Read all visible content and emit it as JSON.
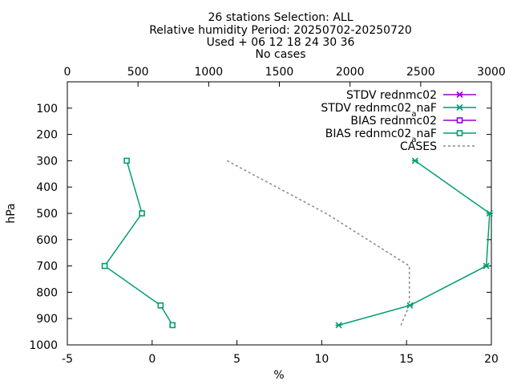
{
  "title": {
    "line1": "26 stations Selection: ALL",
    "line2": "Relative humidity  Period: 20250702-20250720",
    "line3": "Used  + 06 12 18 24 30 36",
    "line4": "No cases"
  },
  "chart_data": {
    "type": "line",
    "xlabel": "%",
    "ylabel": "hPa",
    "xlim": [
      -5,
      20
    ],
    "ylim": [
      1000,
      0
    ],
    "x_ticks": [
      -5,
      0,
      5,
      10,
      15,
      20
    ],
    "y_ticks": [
      100,
      200,
      300,
      400,
      500,
      600,
      700,
      800,
      900,
      1000
    ],
    "x2lim": [
      0,
      3000
    ],
    "x2_ticks": [
      0,
      500,
      1000,
      1500,
      2000,
      2500,
      3000
    ],
    "grid": false,
    "legend_position": "top-right",
    "series": [
      {
        "name": "STDV rednmc02",
        "color": "#9400d3",
        "marker": "star",
        "dash": "solid",
        "points": []
      },
      {
        "name": "STDV rednmc02_anaF",
        "color": "#009e73",
        "marker": "star",
        "dash": "solid",
        "points": [
          [
            15.5,
            300
          ],
          [
            19.9,
            500
          ],
          [
            19.7,
            700
          ],
          [
            15.2,
            850
          ],
          [
            11.0,
            925
          ]
        ]
      },
      {
        "name": "BIAS rednmc02",
        "color": "#9400d3",
        "marker": "square",
        "dash": "solid",
        "points": []
      },
      {
        "name": "BIAS rednmc02_anaF",
        "color": "#009e73",
        "marker": "square",
        "dash": "solid",
        "points": [
          [
            -1.5,
            300
          ],
          [
            -0.6,
            500
          ],
          [
            -2.8,
            700
          ],
          [
            0.5,
            850
          ],
          [
            1.2,
            925
          ]
        ]
      },
      {
        "name": "CASES",
        "color": "#888888",
        "marker": "none",
        "dash": "dashed",
        "axis": "x2",
        "points": [
          [
            1130,
            300
          ],
          [
            1830,
            500
          ],
          [
            2420,
            700
          ],
          [
            2420,
            850
          ],
          [
            2360,
            925
          ]
        ]
      }
    ]
  }
}
